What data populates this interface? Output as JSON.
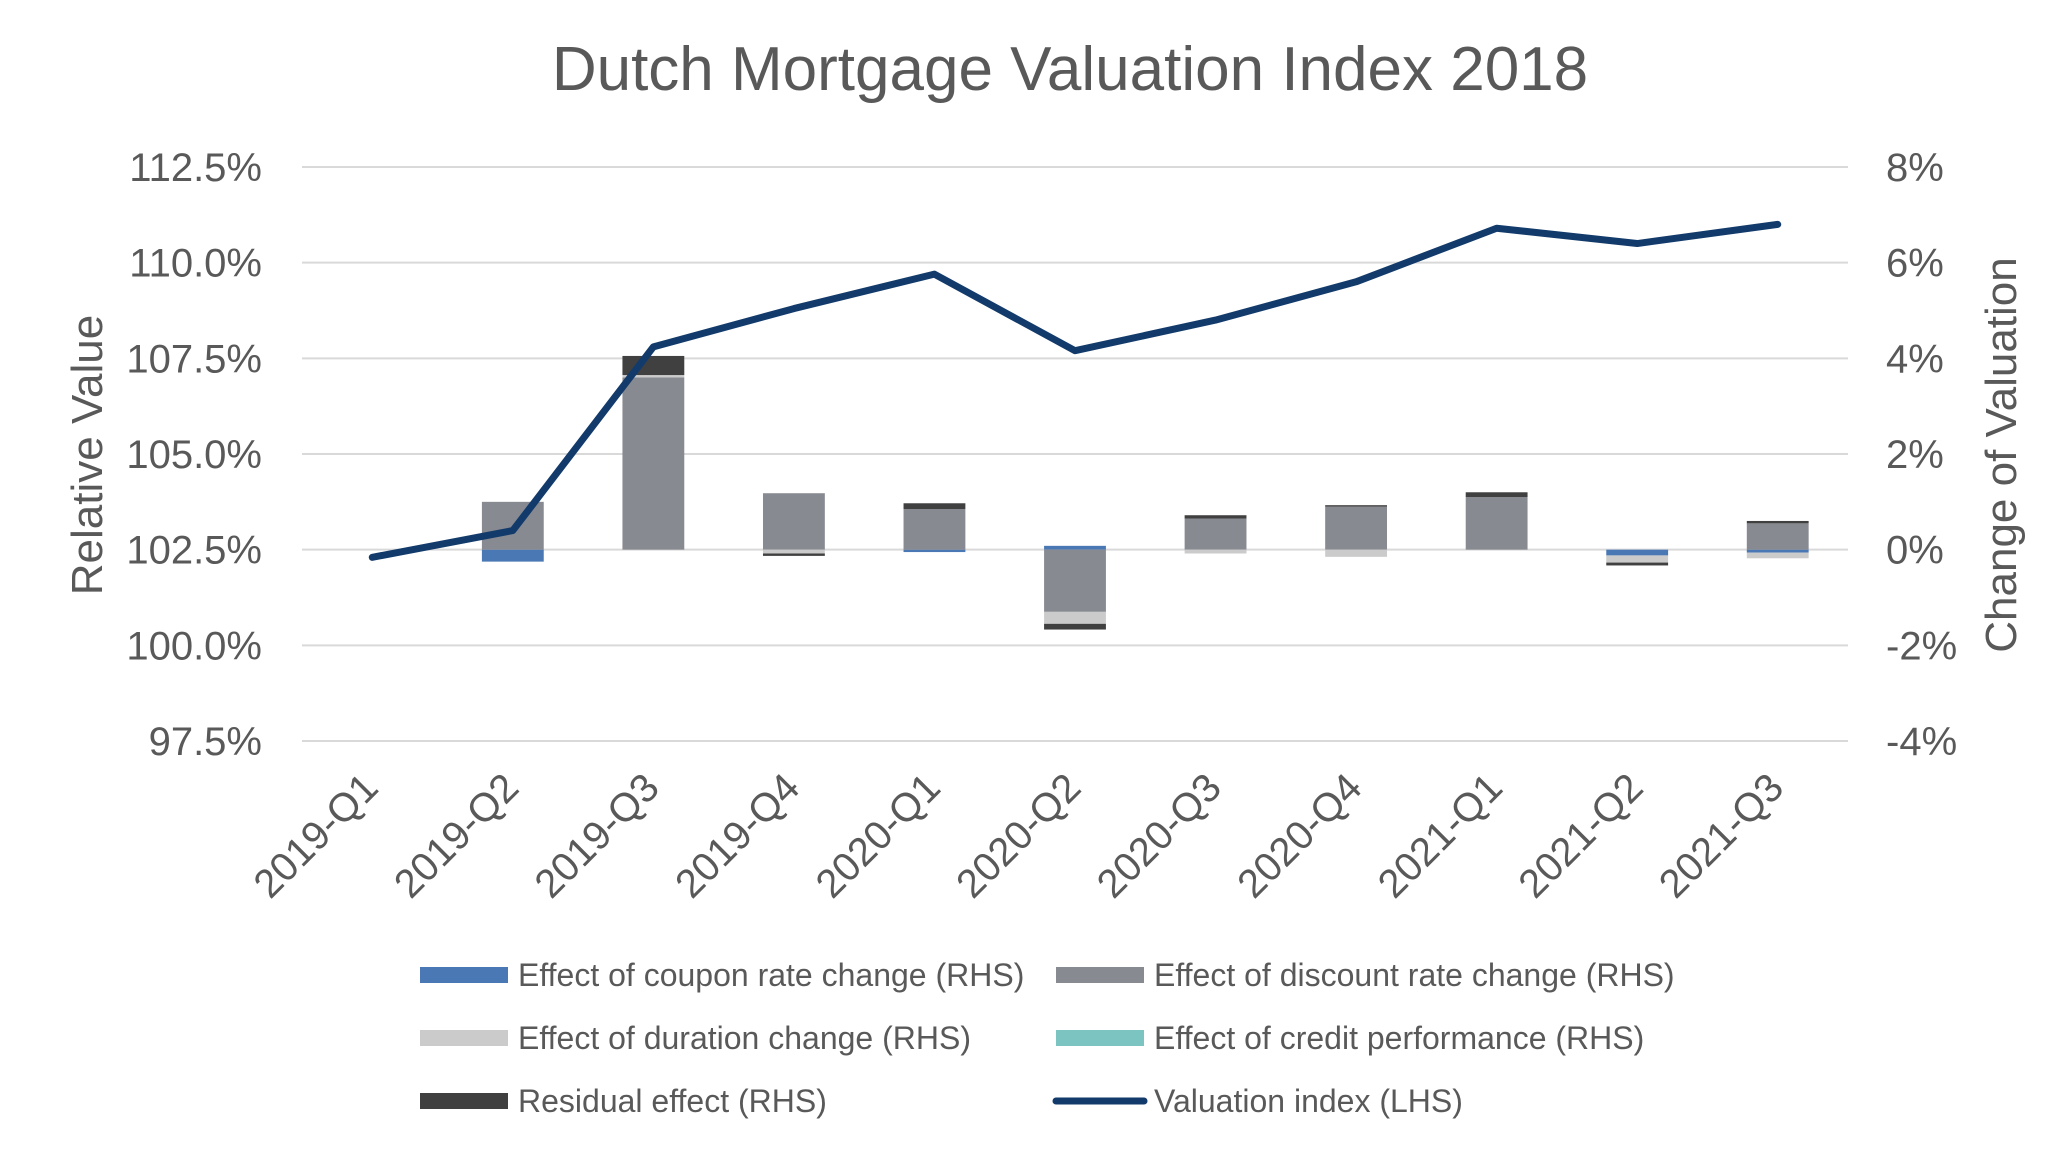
{
  "chart_data": {
    "type": "bar",
    "title": "Dutch Mortgage Valuation Index 2018",
    "ylabel_left": "Relative Value",
    "ylabel_right": "Change of Valuation",
    "categories": [
      "2019-Q1",
      "2019-Q2",
      "2019-Q3",
      "2019-Q4",
      "2020-Q1",
      "2020-Q2",
      "2020-Q3",
      "2020-Q4",
      "2021-Q1",
      "2021-Q2",
      "2021-Q3"
    ],
    "ylim_left": [
      97.5,
      112.5
    ],
    "ylim_right": [
      -4,
      8
    ],
    "yticks_left": [
      "97.5%",
      "100.0%",
      "102.5%",
      "105.0%",
      "107.5%",
      "110.0%",
      "112.5%"
    ],
    "yticks_left_values": [
      97.5,
      100,
      102.5,
      105,
      107.5,
      110,
      112.5
    ],
    "yticks_right": [
      "-4%",
      "-2%",
      "0%",
      "2%",
      "4%",
      "6%",
      "8%"
    ],
    "yticks_right_values": [
      -4,
      -2,
      0,
      2,
      4,
      6,
      8
    ],
    "grid": true,
    "legend_position": "bottom",
    "series": [
      {
        "name": "Effect of coupon rate change (RHS)",
        "axis": "right",
        "kind": "stacked-bar",
        "color": "#4a78b5",
        "values": [
          0,
          -0.25,
          0.0,
          0.0,
          -0.05,
          0.08,
          0.0,
          0.0,
          0.0,
          -0.12,
          -0.06
        ]
      },
      {
        "name": "Effect of discount rate change (RHS)",
        "axis": "right",
        "kind": "stacked-bar",
        "color": "#878a91",
        "values": [
          0,
          1.0,
          3.6,
          1.18,
          0.85,
          -1.3,
          0.65,
          0.9,
          1.1,
          0.0,
          0.55
        ]
      },
      {
        "name": "Effect of duration change (RHS)",
        "axis": "right",
        "kind": "stacked-bar",
        "color": "#cbcbcb",
        "values": [
          0,
          0.0,
          0.05,
          -0.08,
          0.0,
          -0.25,
          -0.08,
          -0.15,
          0.0,
          -0.15,
          -0.12
        ]
      },
      {
        "name": "Effect of credit performance (RHS)",
        "axis": "right",
        "kind": "stacked-bar",
        "color": "#7cc4c1",
        "values": [
          0,
          0.0,
          0.0,
          0.0,
          0.0,
          0.0,
          0.0,
          0.0,
          0.0,
          0.0,
          0.0
        ]
      },
      {
        "name": "Residual effect (RHS)",
        "axis": "right",
        "kind": "stacked-bar",
        "color": "#404040",
        "values": [
          0,
          0.0,
          0.4,
          -0.05,
          0.12,
          -0.12,
          0.07,
          0.03,
          0.1,
          -0.06,
          0.05
        ]
      },
      {
        "name": "Valuation index (LHS)",
        "axis": "left",
        "kind": "line",
        "color": "#123a6a",
        "values": [
          102.3,
          103.0,
          107.8,
          108.8,
          109.7,
          107.7,
          108.5,
          109.5,
          110.9,
          110.5,
          111.0
        ]
      }
    ]
  }
}
